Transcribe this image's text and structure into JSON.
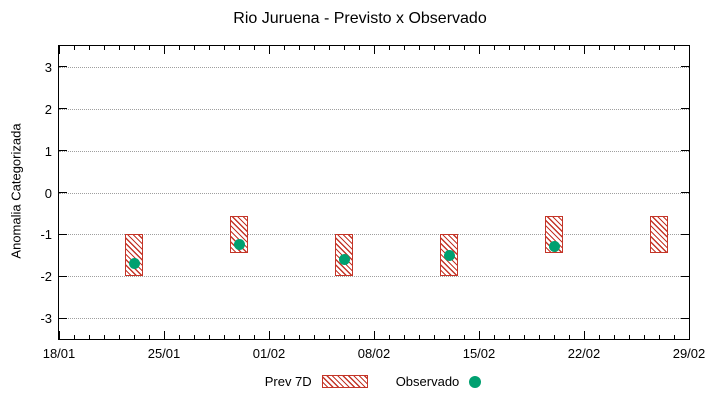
{
  "title": "Rio Juruena - Previsto x Observado",
  "chart_data": {
    "type": "bar",
    "title": "Rio Juruena - Previsto x Observado",
    "xlabel": "",
    "ylabel": "Anomalia Categorizada",
    "ylim": [
      -3.5,
      3.5
    ],
    "yticks": [
      3,
      2,
      1,
      0,
      -1,
      -2,
      -3
    ],
    "grid": "horizontal-dotted",
    "legend_position": "bottom-center",
    "x_axis": {
      "tick_labels": [
        "18/01",
        "25/01",
        "01/02",
        "08/02",
        "15/02",
        "22/02",
        "29/02"
      ],
      "tick_days": [
        0,
        7,
        14,
        21,
        28,
        35,
        42
      ],
      "range_days": [
        0,
        42
      ],
      "minor_tick_every_days": 1
    },
    "series": [
      {
        "name": "Prev 7D",
        "style": "hatched-range-bar",
        "color": "#c43528",
        "points": [
          {
            "date": "23/01",
            "x_day": 5,
            "low": -2.0,
            "high": -1.0
          },
          {
            "date": "30/01",
            "x_day": 12,
            "low": -1.45,
            "high": -0.55
          },
          {
            "date": "06/02",
            "x_day": 19,
            "low": -2.0,
            "high": -1.0
          },
          {
            "date": "13/02",
            "x_day": 26,
            "low": -2.0,
            "high": -1.0
          },
          {
            "date": "20/02",
            "x_day": 33,
            "low": -1.45,
            "high": -0.55
          },
          {
            "date": "27/02",
            "x_day": 40,
            "low": -1.45,
            "high": -0.55
          }
        ]
      },
      {
        "name": "Observado",
        "style": "filled-dot",
        "color": "#00a070",
        "points": [
          {
            "date": "23/01",
            "x_day": 5,
            "value": -1.7
          },
          {
            "date": "30/01",
            "x_day": 12,
            "value": -1.25
          },
          {
            "date": "06/02",
            "x_day": 19,
            "value": -1.6
          },
          {
            "date": "13/02",
            "x_day": 26,
            "value": -1.5
          },
          {
            "date": "20/02",
            "x_day": 33,
            "value": -1.3
          }
        ]
      }
    ]
  }
}
